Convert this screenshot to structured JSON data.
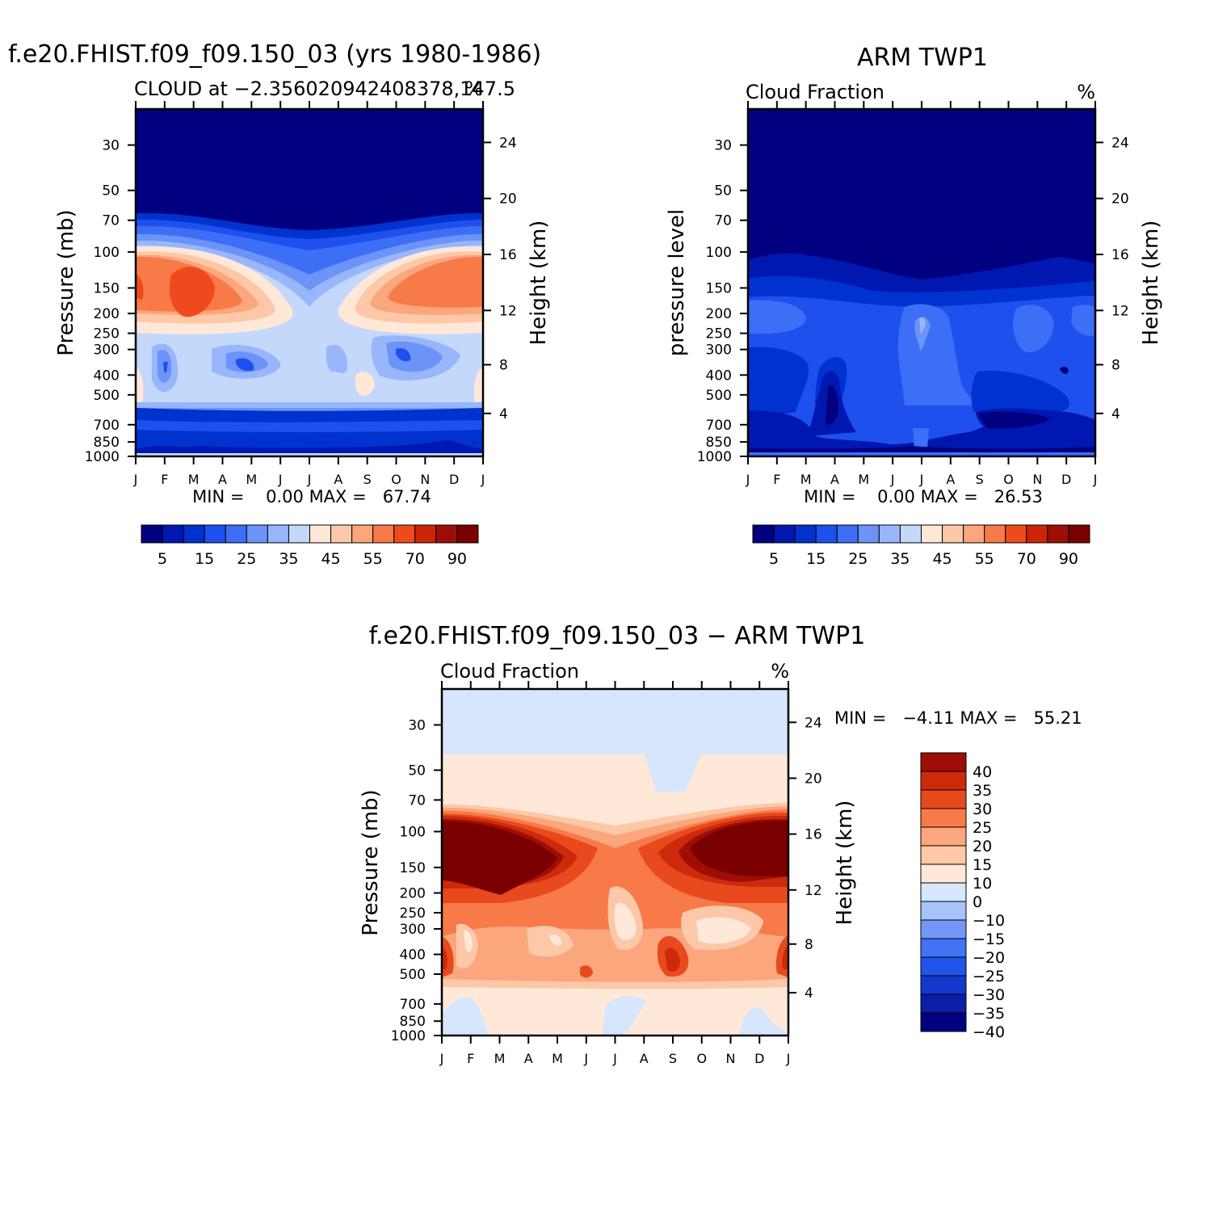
{
  "palette": [
    "#000080",
    "#0018b0",
    "#0032d0",
    "#1e50ee",
    "#3c6ef6",
    "#6b93f8",
    "#98b6fb",
    "#c4d8fc",
    "#ffe8d8",
    "#fdc8a8",
    "#fba67c",
    "#f77a48",
    "#ef4a1e",
    "#cc2406",
    "#9e0e06",
    "#7a0000"
  ],
  "diff_palette": [
    "#000080",
    "#0a1fa6",
    "#1238cc",
    "#1f55ea",
    "#4173f4",
    "#7497f7",
    "#a8c2fb",
    "#d6e6fd",
    "#ffe8d8",
    "#fdc8a8",
    "#fba67c",
    "#f77a48",
    "#e84a1e",
    "#cc2a0a",
    "#9e0e06"
  ],
  "panels": [
    {
      "title": "f.e20.FHIST.f09_f09.150_03 (yrs 1980-1986)",
      "subtitle_left": "CLOUD at −2.356020942408378,147.5",
      "subtitle_right": "%",
      "ylabel": "Pressure (mb)",
      "y2label": "Height (km)",
      "minmax_text": "MIN =    0.00 MAX =   67.74",
      "colorbar_labels": [
        "5",
        "15",
        "25",
        "35",
        "45",
        "55",
        "70",
        "90"
      ]
    },
    {
      "title": "ARM TWP1",
      "subtitle_left": "Cloud Fraction",
      "subtitle_right": "%",
      "ylabel": "pressure level",
      "y2label": "Height (km)",
      "minmax_text": "MIN =    0.00 MAX =   26.53",
      "colorbar_labels": [
        "5",
        "15",
        "25",
        "35",
        "45",
        "55",
        "70",
        "90"
      ]
    },
    {
      "title": "f.e20.FHIST.f09_f09.150_03 − ARM TWP1",
      "subtitle_left": "Cloud Fraction",
      "subtitle_right": "%",
      "ylabel": "Pressure (mb)",
      "y2label": "Height (km)",
      "minmax_text": "MIN =   −4.11 MAX =   55.21",
      "colorbar_labels": [
        "40",
        "35",
        "30",
        "25",
        "20",
        "15",
        "10",
        "0",
        "−10",
        "−15",
        "−20",
        "−25",
        "−30",
        "−35",
        "−40"
      ]
    }
  ],
  "chart_data": [
    {
      "type": "heatmap",
      "title": "f.e20.FHIST.f09_f09.150_03 (yrs 1980-1986)",
      "subtitle": "CLOUD at −2.356020942408378,147.5",
      "units": "%",
      "ylabel": "Pressure (mb)",
      "y2label": "Height (km)",
      "x": [
        "J",
        "F",
        "M",
        "A",
        "M",
        "J",
        "J",
        "A",
        "S",
        "O",
        "N",
        "D",
        "J"
      ],
      "y_pressure_ticks": [
        30,
        50,
        70,
        100,
        150,
        200,
        250,
        300,
        400,
        500,
        700,
        850,
        1000
      ],
      "y_height_ticks": [
        4,
        8,
        12,
        16,
        20,
        24
      ],
      "ylim": [
        20,
        1000
      ],
      "min": 0.0,
      "max": 67.74,
      "levels": [
        5,
        10,
        15,
        20,
        25,
        30,
        35,
        40,
        45,
        50,
        55,
        60,
        70,
        80,
        90
      ],
      "contour_kind": "model"
    },
    {
      "type": "heatmap",
      "title": "ARM TWP1",
      "subtitle": "Cloud Fraction",
      "units": "%",
      "ylabel": "pressure level",
      "y2label": "Height (km)",
      "x": [
        "J",
        "F",
        "M",
        "A",
        "M",
        "J",
        "J",
        "A",
        "S",
        "O",
        "N",
        "D",
        "J"
      ],
      "y_pressure_ticks": [
        30,
        50,
        70,
        100,
        150,
        200,
        250,
        300,
        400,
        500,
        700,
        850,
        1000
      ],
      "y_height_ticks": [
        4,
        8,
        12,
        16,
        20,
        24
      ],
      "ylim": [
        20,
        1000
      ],
      "min": 0.0,
      "max": 26.53,
      "levels": [
        5,
        10,
        15,
        20,
        25,
        30,
        35,
        40,
        45,
        50,
        55,
        60,
        70,
        80,
        90
      ],
      "contour_kind": "obs"
    },
    {
      "type": "heatmap",
      "title": "f.e20.FHIST.f09_f09.150_03 − ARM TWP1",
      "subtitle": "Cloud Fraction",
      "units": "%",
      "ylabel": "Pressure (mb)",
      "y2label": "Height (km)",
      "x": [
        "J",
        "F",
        "M",
        "A",
        "M",
        "J",
        "J",
        "A",
        "S",
        "O",
        "N",
        "D",
        "J"
      ],
      "y_pressure_ticks": [
        30,
        50,
        70,
        100,
        150,
        200,
        250,
        300,
        400,
        500,
        700,
        850,
        1000
      ],
      "y_height_ticks": [
        4,
        8,
        12,
        16,
        20,
        24
      ],
      "ylim": [
        20,
        1000
      ],
      "min": -4.11,
      "max": 55.21,
      "levels": [
        -40,
        -35,
        -30,
        -25,
        -20,
        -15,
        -10,
        0,
        10,
        15,
        20,
        25,
        30,
        35,
        40
      ],
      "contour_kind": "diff"
    }
  ]
}
